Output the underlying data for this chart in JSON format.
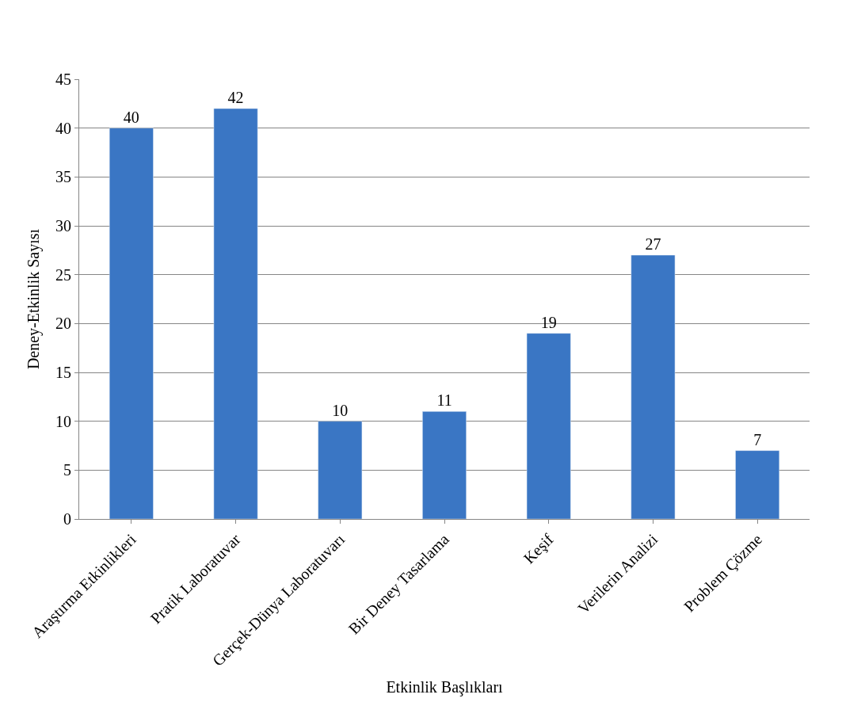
{
  "chart_data": {
    "type": "bar",
    "xlabel": "Etkinlik Başlıkları",
    "ylabel": "Deney-Etkinlik Sayısı",
    "categories": [
      "Araştırma Etkinlikleri",
      "Pratik Laboratuvar",
      "Gerçek-Dünya Laboratuvarı",
      "Bir Deney Tasarlama",
      "Keşif",
      "Verilerin Analizi",
      "Problem Çözme"
    ],
    "series": [
      {
        "color": "#3a76c4",
        "values": [
          40,
          42,
          10,
          11,
          19,
          27,
          7
        ]
      }
    ],
    "ylim": [
      0,
      45
    ],
    "yticks": [
      0,
      5,
      10,
      15,
      20,
      25,
      30,
      35,
      40,
      45
    ],
    "grid": "y",
    "data_labels": true
  }
}
